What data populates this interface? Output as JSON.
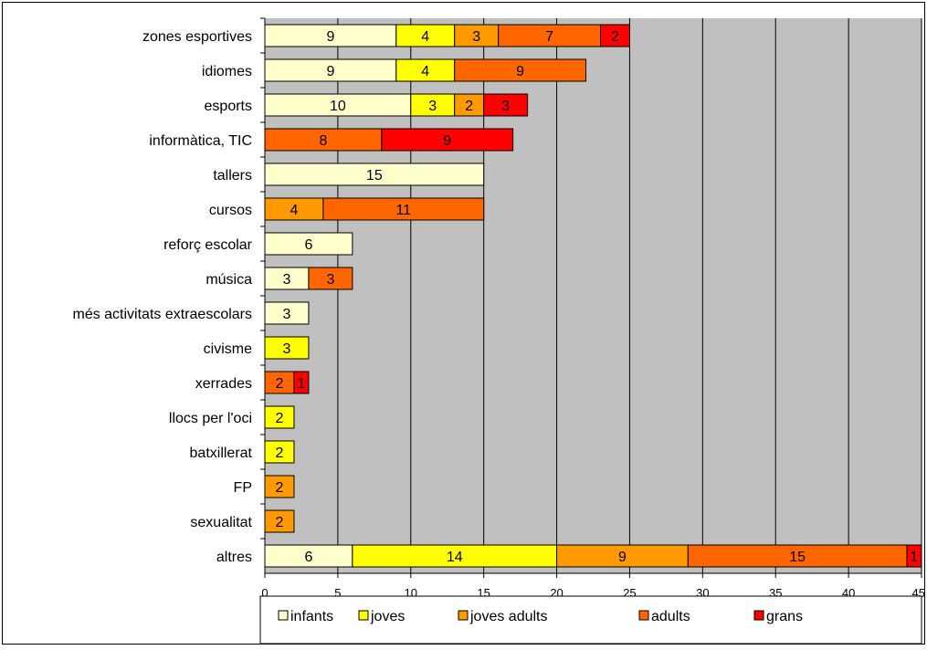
{
  "chart_data": {
    "type": "bar",
    "orientation": "horizontal",
    "stacked": true,
    "categories": [
      "zones esportives",
      "idiomes",
      "esports",
      "informàtica, TIC",
      "tallers",
      "cursos",
      "reforç escolar",
      "música",
      "més activitats extraescolars",
      "civisme",
      "xerrades",
      "llocs per l'oci",
      "batxillerat",
      "FP",
      "sexualitat",
      "altres"
    ],
    "series": [
      {
        "name": "infants",
        "color": "#FFFFCC",
        "values": [
          9,
          9,
          10,
          0,
          15,
          0,
          6,
          3,
          3,
          0,
          0,
          0,
          0,
          0,
          0,
          6
        ]
      },
      {
        "name": "joves",
        "color": "#FFFF00",
        "values": [
          4,
          4,
          3,
          0,
          0,
          0,
          0,
          0,
          0,
          3,
          0,
          2,
          2,
          0,
          0,
          14
        ]
      },
      {
        "name": "joves adults",
        "color": "#FF9900",
        "values": [
          3,
          0,
          2,
          0,
          0,
          4,
          0,
          0,
          0,
          0,
          0,
          0,
          0,
          2,
          2,
          9
        ]
      },
      {
        "name": "adults",
        "color": "#FF6600",
        "values": [
          7,
          9,
          0,
          8,
          0,
          11,
          0,
          3,
          0,
          0,
          2,
          0,
          0,
          0,
          0,
          15
        ]
      },
      {
        "name": "grans",
        "color": "#FF0000",
        "values": [
          2,
          0,
          3,
          9,
          0,
          0,
          0,
          0,
          0,
          0,
          1,
          0,
          0,
          0,
          0,
          1
        ]
      }
    ],
    "xlim": [
      0,
      45
    ],
    "xticks": [
      "0",
      "5",
      "10",
      "15",
      "20",
      "25",
      "30",
      "35",
      "40",
      "45"
    ],
    "plot_background": "#C0C0C0",
    "grid": true,
    "legend_position": "bottom"
  }
}
